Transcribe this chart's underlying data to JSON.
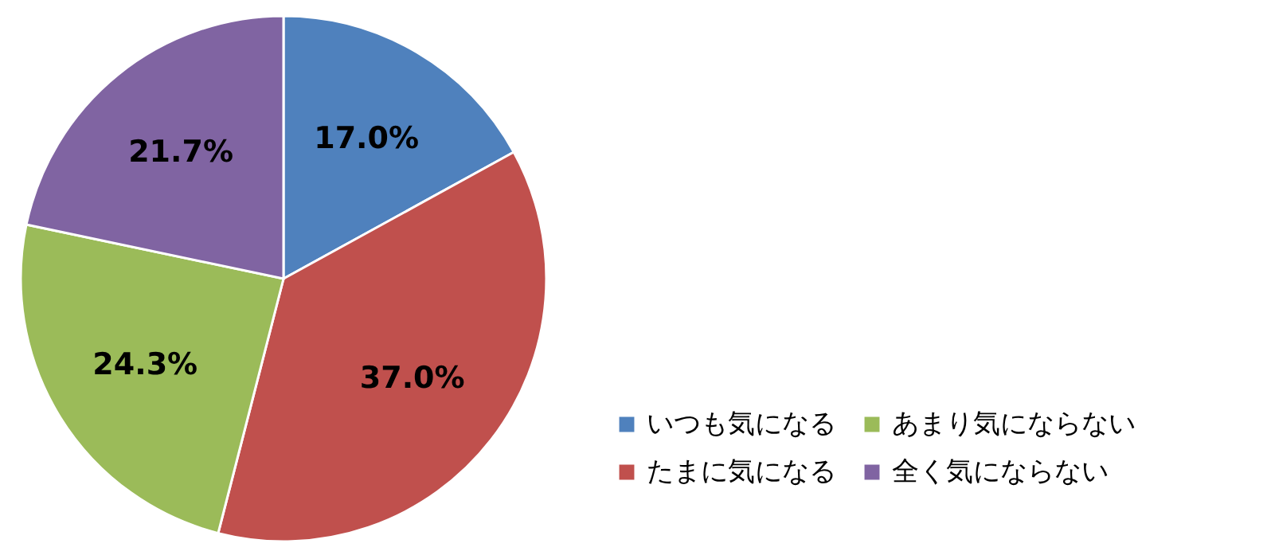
{
  "chart_data": {
    "type": "pie",
    "categories": [
      "いつも気になる",
      "たまに気になる",
      "あまり気にならない",
      "全く気にならない"
    ],
    "values": [
      17.0,
      37.0,
      24.3,
      21.7
    ],
    "colors": [
      "#4f81bd",
      "#c0504d",
      "#9bbb59",
      "#8064a2"
    ],
    "value_labels": [
      "17.0%",
      "37.0%",
      "24.3%",
      "21.7%"
    ],
    "legend": "bottom right"
  }
}
